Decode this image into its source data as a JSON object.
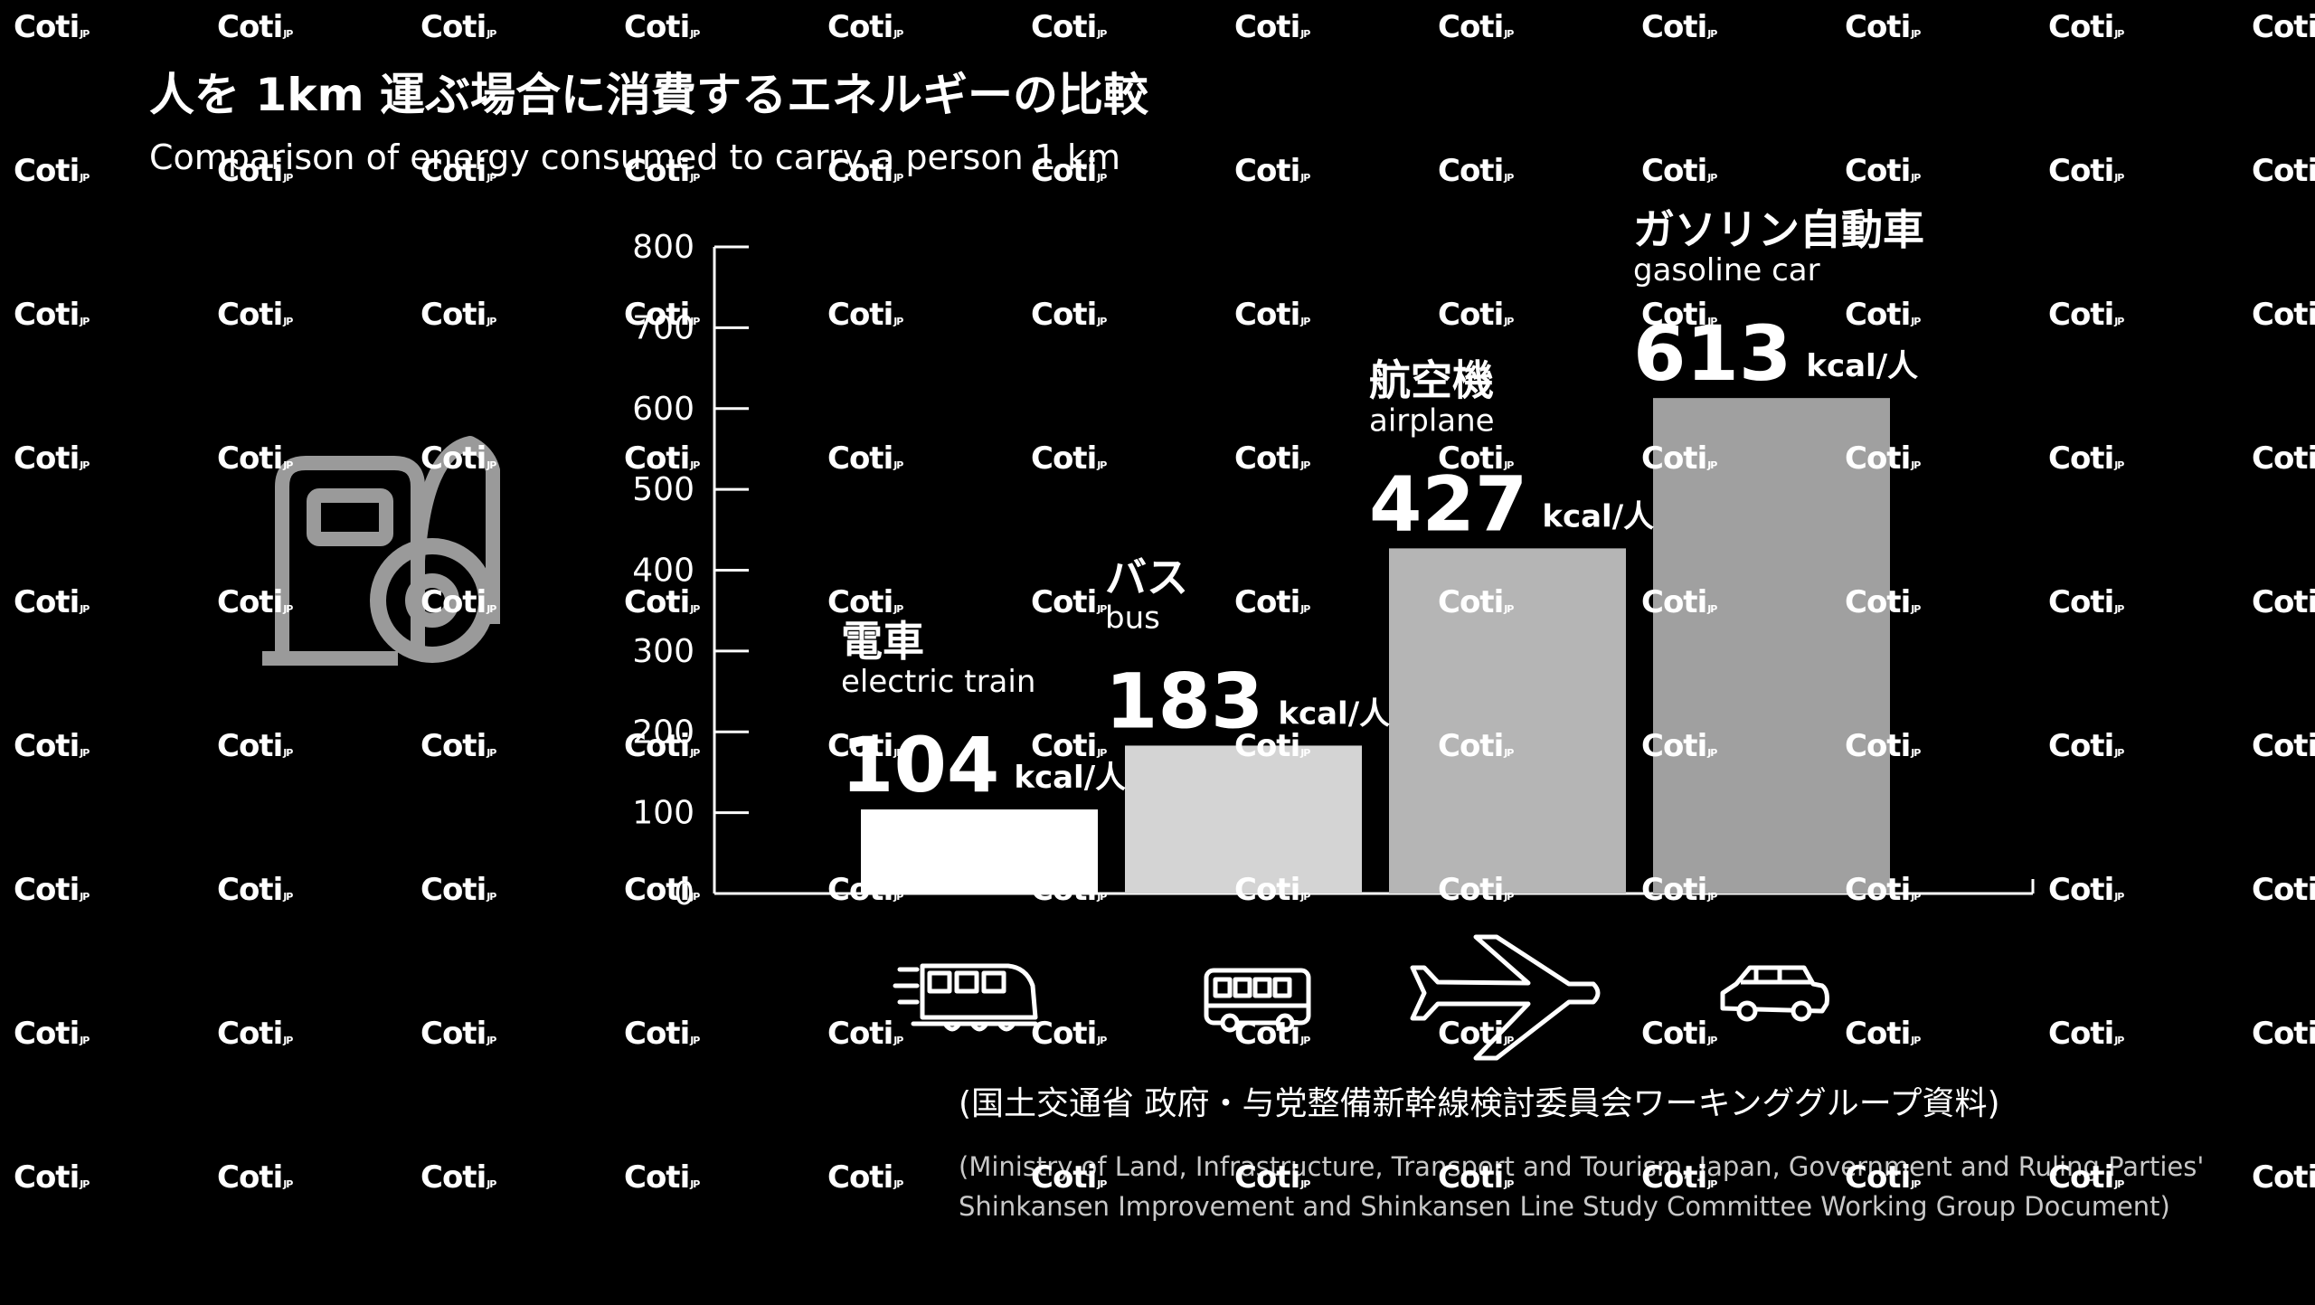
{
  "title": "人を 1km 運ぶ場合に消費するエネルギーの比較",
  "subtitle": "Comparison of energy consumed to carry a person 1 km",
  "watermark": {
    "brand": "Coti",
    "suffix": "JP"
  },
  "source": {
    "jp": "(国土交通省 政府・与党整備新幹線検討委員会ワーキンググループ資料)",
    "en_line1": "(Ministry of Land, Infrastructure, Transport and Tourism, Japan, Government and Ruling Parties'",
    "en_line2": "Shinkansen Improvement and Shinkansen Line Study Committee Working Group Document)"
  },
  "icons": [
    "fuel-pump-icon",
    "train-icon",
    "bus-icon",
    "airplane-icon",
    "car-icon"
  ],
  "colors": {
    "background": "#000000",
    "text": "#ffffff",
    "axis": "#ffffff",
    "icon_gray": "#9a9a9a"
  },
  "chart_data": {
    "type": "bar",
    "unit": "kcal/人",
    "categories": [
      {
        "jp": "電車",
        "en": "electric train",
        "value": 104,
        "color": "#ffffff"
      },
      {
        "jp": "バス",
        "en": "bus",
        "value": 183,
        "color": "#d4d4d4"
      },
      {
        "jp": "航空機",
        "en": "airplane",
        "value": 427,
        "color": "#b5b5b5"
      },
      {
        "jp": "ガソリン自動車",
        "en": "gasoline car",
        "value": 613,
        "color": "#a0a0a0"
      }
    ],
    "yticks": [
      0,
      100,
      200,
      300,
      400,
      500,
      600,
      700,
      800
    ],
    "ylim": [
      0,
      800
    ],
    "grid": false
  }
}
